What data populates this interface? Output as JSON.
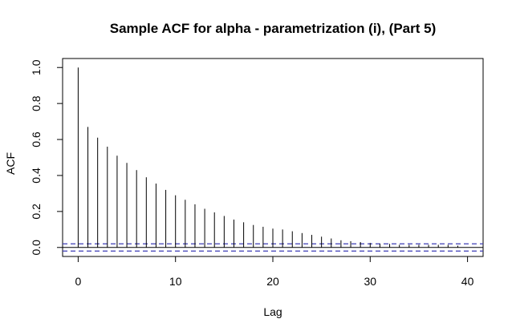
{
  "chart_data": {
    "type": "bar",
    "title": "Sample ACF for alpha - parametrization (i), (Part 5)",
    "xlabel": "Lag",
    "ylabel": "ACF",
    "xlim": [
      -1.6,
      41.6
    ],
    "ylim": [
      -0.05,
      1.05
    ],
    "xticks": [
      0,
      10,
      20,
      30,
      40
    ],
    "xtick_labels": [
      "0",
      "10",
      "20",
      "30",
      "40"
    ],
    "yticks": [
      0.0,
      0.2,
      0.4,
      0.6,
      0.8,
      1.0
    ],
    "ytick_labels": [
      "0.0",
      "0.2",
      "0.4",
      "0.6",
      "0.8",
      "1.0"
    ],
    "lags": [
      0,
      1,
      2,
      3,
      4,
      5,
      6,
      7,
      8,
      9,
      10,
      11,
      12,
      13,
      14,
      15,
      16,
      17,
      18,
      19,
      20,
      21,
      22,
      23,
      24,
      25,
      26,
      27,
      28,
      29,
      30,
      31,
      32,
      33,
      34,
      35,
      36,
      37,
      38,
      39
    ],
    "values": [
      1.0,
      0.67,
      0.61,
      0.56,
      0.51,
      0.47,
      0.43,
      0.39,
      0.355,
      0.32,
      0.29,
      0.265,
      0.24,
      0.215,
      0.195,
      0.175,
      0.155,
      0.14,
      0.125,
      0.115,
      0.105,
      0.1,
      0.09,
      0.08,
      0.07,
      0.06,
      0.05,
      0.04,
      0.035,
      0.03,
      0.025,
      0.02,
      0.02,
      0.015,
      0.015,
      0.015,
      0.015,
      0.015,
      0.015,
      0.01
    ],
    "confidence_bounds": [
      0.02,
      -0.02
    ],
    "confidence_color": "#3b3bb5",
    "bar_color": "#000000",
    "zero_line": true,
    "grid": false
  }
}
